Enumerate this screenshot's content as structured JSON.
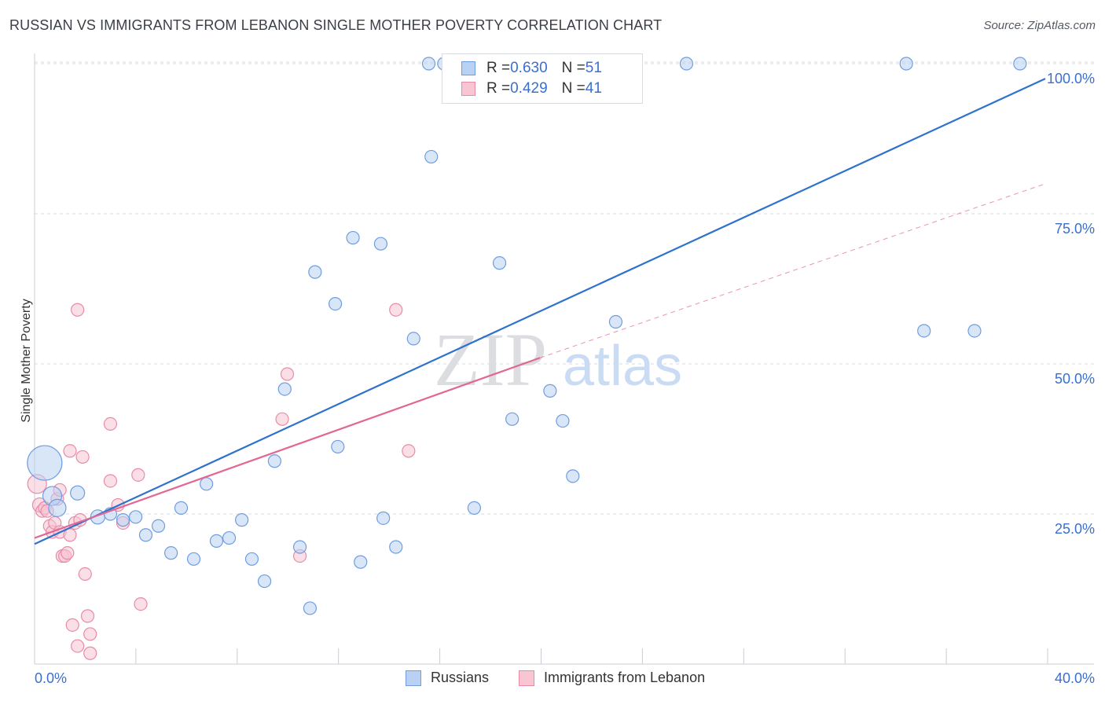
{
  "title": "RUSSIAN VS IMMIGRANTS FROM LEBANON SINGLE MOTHER POVERTY CORRELATION CHART",
  "source": "Source: ZipAtlas.com",
  "legend_stats": [
    {
      "r_label": "R = ",
      "r_value": "0.630",
      "n_label": "N = ",
      "n_value": "51"
    },
    {
      "r_label": "R = ",
      "r_value": "0.429",
      "n_label": "N = ",
      "n_value": "41"
    }
  ],
  "watermark": {
    "zip": "ZIP",
    "atlas": "atlas"
  },
  "colors": {
    "russians_fill": "#b9d2f3",
    "russians_stroke": "#6f9de0",
    "russians_line": "#2e72cc",
    "lebanon_fill": "#f8c5d3",
    "lebanon_stroke": "#ea8aa6",
    "lebanon_line": "#e06892",
    "axis_text": "#3a6fd0",
    "grid": "#d8dbe0"
  },
  "chart_data": {
    "type": "scatter",
    "title": "RUSSIAN VS IMMIGRANTS FROM LEBANON SINGLE MOTHER POVERTY CORRELATION CHART",
    "xlabel": "",
    "ylabel": "Single Mother Poverty",
    "xlim": [
      0,
      40
    ],
    "ylim": [
      0,
      101
    ],
    "x_tick_labels": [
      "0.0%",
      "40.0%"
    ],
    "y_ticks": [
      25,
      50,
      75,
      100
    ],
    "y_tick_labels": [
      "25.0%",
      "50.0%",
      "75.0%",
      "100.0%"
    ],
    "grid": true,
    "legend": "bottom-center",
    "series": [
      {
        "name": "Russians",
        "points": [
          [
            0.4,
            33.5,
            22
          ],
          [
            0.7,
            28,
            12
          ],
          [
            0.9,
            26,
            11
          ],
          [
            1.7,
            28.5,
            9
          ],
          [
            2.5,
            24.5,
            9
          ],
          [
            3.0,
            25,
            8
          ],
          [
            3.5,
            24,
            8
          ],
          [
            4.0,
            24.5,
            8
          ],
          [
            4.4,
            21.5,
            8
          ],
          [
            4.9,
            23,
            8
          ],
          [
            5.4,
            18.5,
            8
          ],
          [
            5.8,
            26,
            8
          ],
          [
            6.3,
            17.5,
            8
          ],
          [
            6.8,
            30,
            8
          ],
          [
            7.2,
            20.5,
            8
          ],
          [
            7.7,
            21,
            8
          ],
          [
            8.2,
            24,
            8
          ],
          [
            8.6,
            17.5,
            8
          ],
          [
            9.1,
            13.8,
            8
          ],
          [
            9.5,
            33.8,
            8
          ],
          [
            9.9,
            45.8,
            8
          ],
          [
            10.5,
            19.5,
            8
          ],
          [
            10.9,
            9.3,
            8
          ],
          [
            11.1,
            65.3,
            8
          ],
          [
            11.9,
            60,
            8
          ],
          [
            12.0,
            36.2,
            8
          ],
          [
            12.6,
            71,
            8
          ],
          [
            12.9,
            17,
            8
          ],
          [
            13.7,
            70,
            8
          ],
          [
            13.8,
            24.3,
            8
          ],
          [
            14.3,
            19.5,
            8
          ],
          [
            15.0,
            54.2,
            8
          ],
          [
            15.6,
            100,
            8
          ],
          [
            15.7,
            84.5,
            8
          ],
          [
            16.2,
            100,
            8
          ],
          [
            17.4,
            26,
            8
          ],
          [
            17.8,
            100,
            8
          ],
          [
            18.4,
            66.8,
            8
          ],
          [
            18.9,
            40.8,
            8
          ],
          [
            20.4,
            45.5,
            8
          ],
          [
            20.9,
            40.5,
            8
          ],
          [
            21.3,
            31.3,
            8
          ],
          [
            22.3,
            100,
            8
          ],
          [
            23.0,
            57,
            8
          ],
          [
            25.8,
            100,
            8
          ],
          [
            34.5,
            100,
            8
          ],
          [
            35.2,
            55.5,
            8
          ],
          [
            37.2,
            55.5,
            8
          ],
          [
            39.0,
            100,
            8
          ]
        ]
      },
      {
        "name": "Immigrants from Lebanon",
        "points": [
          [
            0.1,
            30,
            12
          ],
          [
            0.2,
            26.5,
            9
          ],
          [
            0.3,
            25.5,
            8
          ],
          [
            0.4,
            26,
            8
          ],
          [
            0.5,
            25.5,
            8
          ],
          [
            0.6,
            23,
            8
          ],
          [
            0.7,
            22,
            8
          ],
          [
            0.8,
            23.5,
            8
          ],
          [
            0.9,
            27.5,
            8
          ],
          [
            1.0,
            29,
            8
          ],
          [
            1.0,
            22,
            8
          ],
          [
            1.1,
            18,
            8
          ],
          [
            1.2,
            18,
            8
          ],
          [
            1.3,
            18.5,
            8
          ],
          [
            1.4,
            21.5,
            8
          ],
          [
            1.4,
            35.5,
            8
          ],
          [
            1.5,
            6.5,
            8
          ],
          [
            1.6,
            23.5,
            8
          ],
          [
            1.7,
            59,
            8
          ],
          [
            1.7,
            3,
            8
          ],
          [
            1.8,
            24,
            8
          ],
          [
            1.9,
            34.5,
            8
          ],
          [
            2.0,
            15,
            8
          ],
          [
            2.1,
            8,
            8
          ],
          [
            2.2,
            5,
            8
          ],
          [
            2.2,
            1.8,
            8
          ],
          [
            3.0,
            40,
            8
          ],
          [
            3.0,
            30.5,
            8
          ],
          [
            3.3,
            26.5,
            8
          ],
          [
            3.5,
            23.5,
            8
          ],
          [
            4.1,
            31.5,
            8
          ],
          [
            4.2,
            10,
            8
          ],
          [
            9.8,
            40.8,
            8
          ],
          [
            10.0,
            48.3,
            8
          ],
          [
            10.5,
            18,
            8
          ],
          [
            14.3,
            59,
            8
          ],
          [
            14.8,
            35.5,
            8
          ]
        ]
      }
    ],
    "trend_lines": [
      {
        "name": "Russians",
        "x": [
          0,
          40
        ],
        "y": [
          20,
          97.5
        ],
        "style": "solid"
      },
      {
        "name": "Immigrants from Lebanon",
        "x": [
          0,
          20
        ],
        "y": [
          21,
          51
        ],
        "style": "solid"
      },
      {
        "name": "Immigrants from Lebanon",
        "x": [
          20,
          40
        ],
        "y": [
          51,
          80
        ],
        "style": "dashed"
      }
    ]
  }
}
